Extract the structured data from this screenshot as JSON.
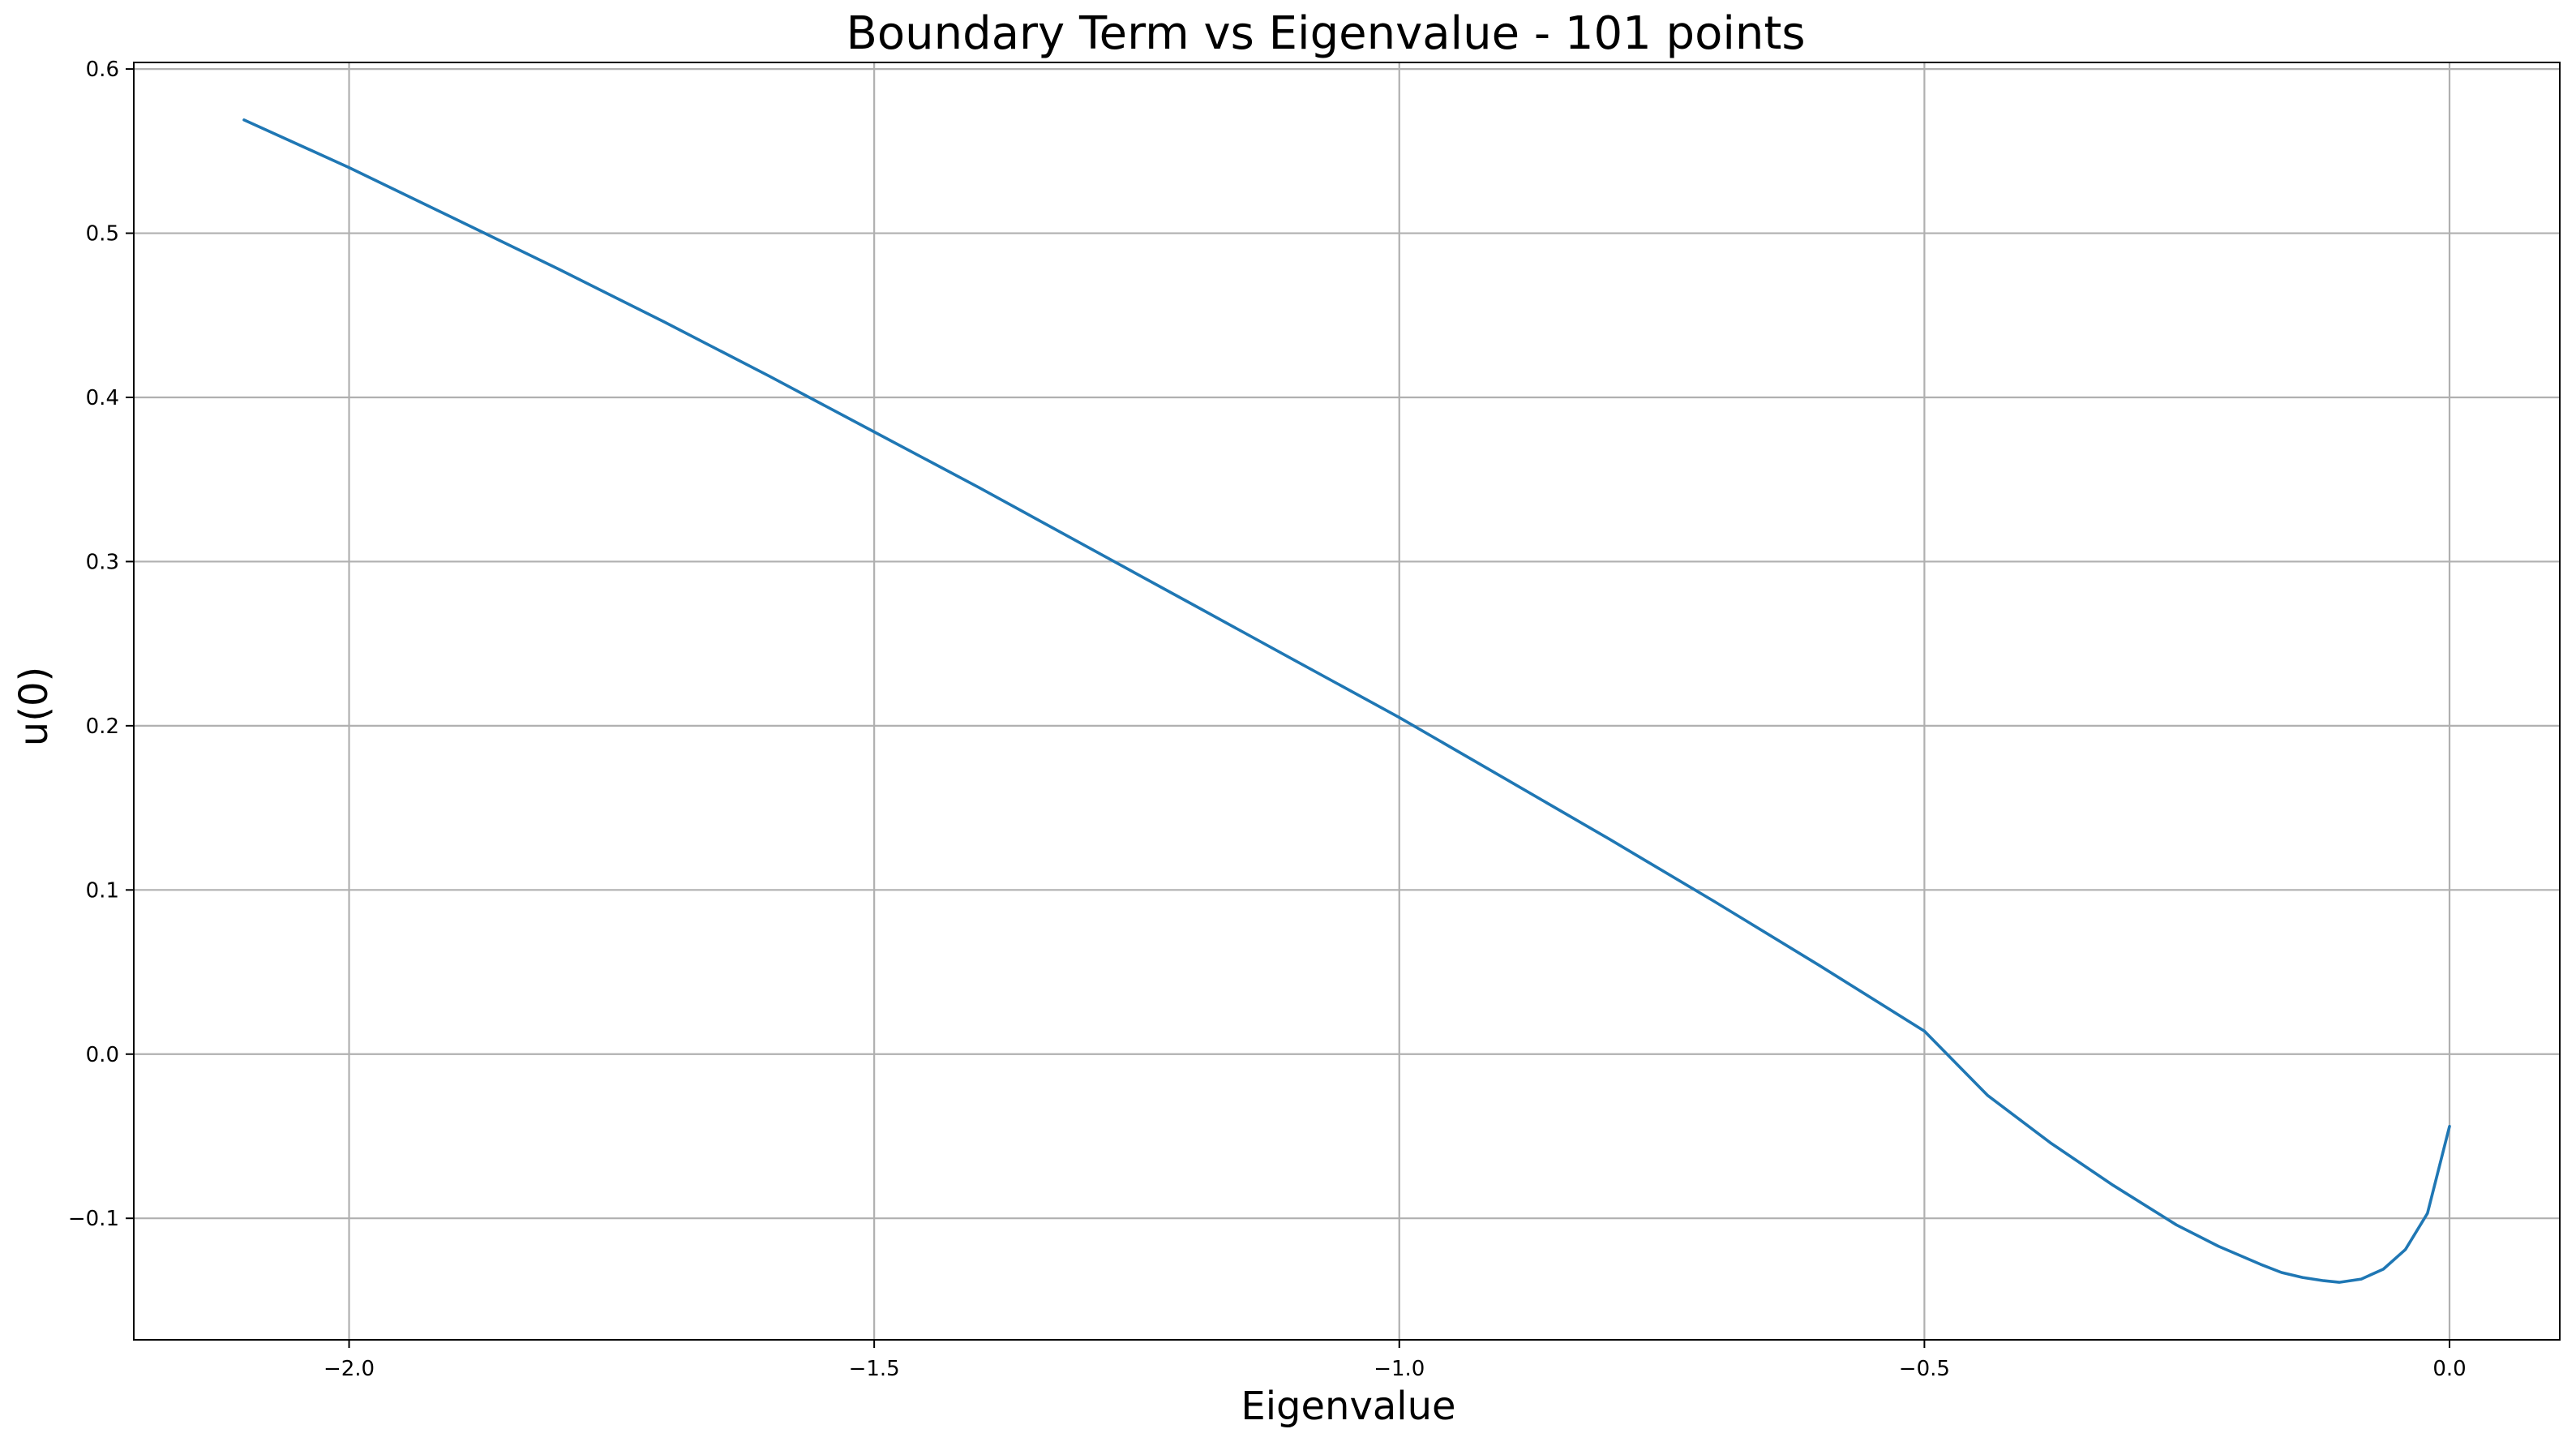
{
  "chart_data": {
    "type": "line",
    "title": "Boundary Term vs Eigenvalue - 101 points",
    "xlabel": "Eigenvalue",
    "ylabel": "u(0)",
    "xlim": [
      -2.205,
      0.105
    ],
    "ylim": [
      -0.174,
      0.604
    ],
    "grid": true,
    "legend": "none",
    "x_ticks": [
      -2.0,
      -1.5,
      -1.0,
      -0.5,
      0.0
    ],
    "x_tick_labels": [
      "−2.0",
      "−1.5",
      "−1.0",
      "−0.5",
      "0.0"
    ],
    "y_ticks": [
      -0.1,
      0.0,
      0.1,
      0.2,
      0.3,
      0.4,
      0.5,
      0.6
    ],
    "y_tick_labels": [
      "−0.1",
      "0.0",
      "0.1",
      "0.2",
      "0.3",
      "0.4",
      "0.5",
      "0.6"
    ],
    "series": [
      {
        "color": "#1f77b4",
        "x": [
          -2.1,
          -2.0,
          -1.9,
          -1.8,
          -1.7,
          -1.6,
          -1.5,
          -1.4,
          -1.3,
          -1.2,
          -1.1,
          -1.0,
          -0.9,
          -0.8,
          -0.7,
          -0.6,
          -0.5,
          -0.44,
          -0.38,
          -0.32,
          -0.26,
          -0.22,
          -0.18,
          -0.16,
          -0.14,
          -0.12,
          -0.105,
          -0.084,
          -0.063,
          -0.042,
          -0.021,
          0.0
        ],
        "y": [
          0.569,
          0.54,
          0.509,
          0.478,
          0.446,
          0.413,
          0.379,
          0.345,
          0.31,
          0.275,
          0.24,
          0.205,
          0.168,
          0.131,
          0.093,
          0.054,
          0.014,
          -0.025,
          -0.054,
          -0.08,
          -0.104,
          -0.117,
          -0.128,
          -0.133,
          -0.136,
          -0.138,
          -0.139,
          -0.137,
          -0.131,
          -0.119,
          -0.097,
          -0.044
        ]
      }
    ]
  }
}
